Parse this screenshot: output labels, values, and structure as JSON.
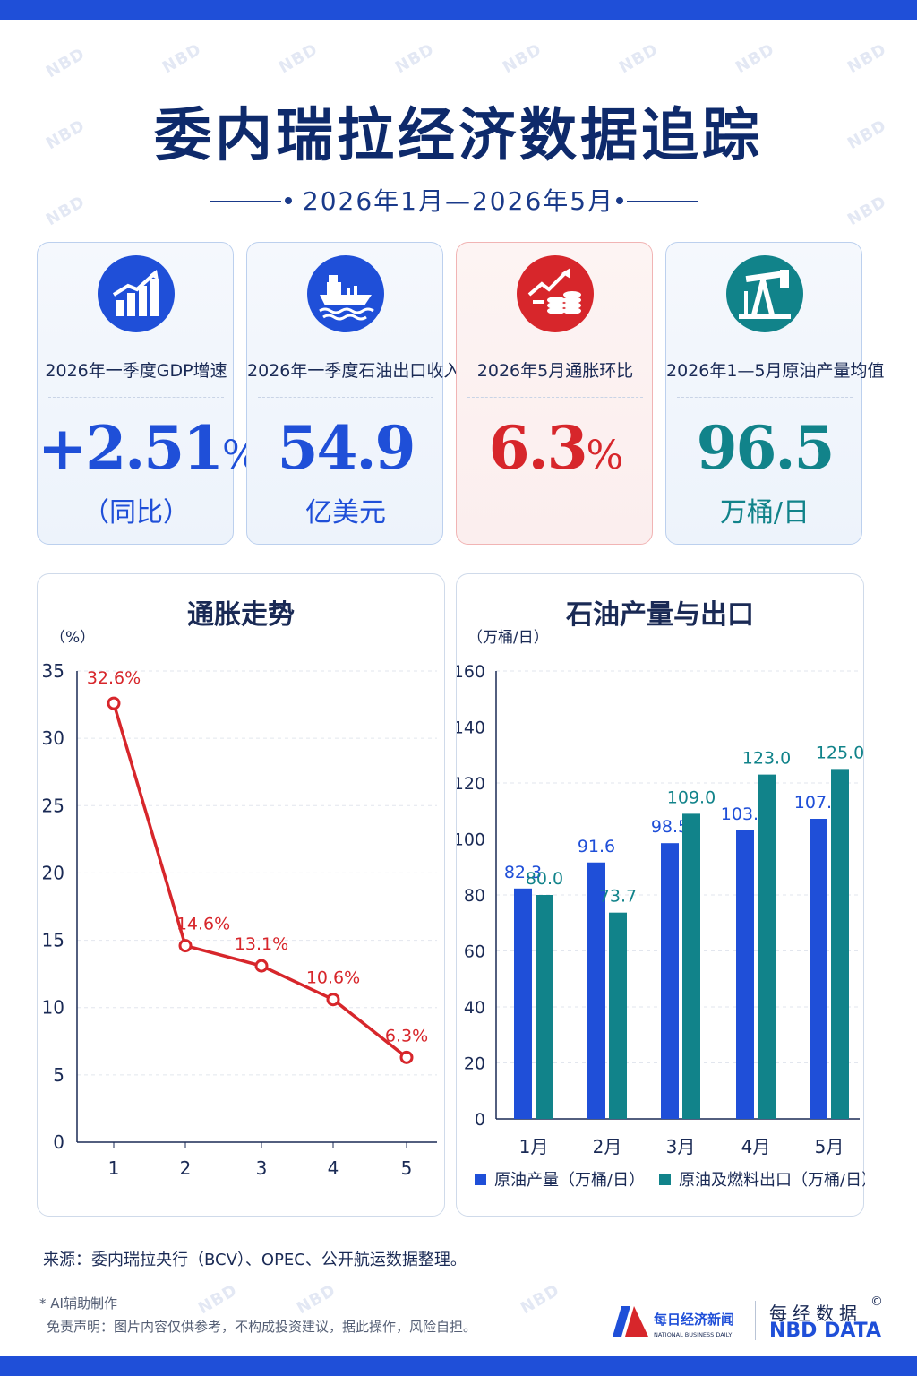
{
  "header": {
    "title": "委内瑞拉经济数据追踪",
    "subtitle": "2026年1月—2026年5月",
    "watermark": "NBD"
  },
  "colors": {
    "primary_blue": "#1f4fd8",
    "teal": "#11838a",
    "red": "#d7262b",
    "navy": "#0e2a6b"
  },
  "cards": [
    {
      "icon": "bar-growth-icon",
      "label": "2026年一季度GDP增速",
      "value": "+2.51",
      "unit": "%",
      "note": "（同比）",
      "color": "#1f4fd8"
    },
    {
      "icon": "oil-tanker-icon",
      "label": "2026年一季度石油出口收入",
      "value": "54.9",
      "unit": "",
      "note": "亿美元",
      "color": "#1f4fd8"
    },
    {
      "icon": "coins-arrow-icon",
      "label": "2026年5月通胀环比",
      "value": "6.3",
      "unit": "%",
      "note": "",
      "color": "#d7262b"
    },
    {
      "icon": "oil-pump-icon",
      "label": "2026年1—5月原油产量均值",
      "value": "96.5",
      "unit": "",
      "note": "万桶/日",
      "color": "#11838a"
    }
  ],
  "chart_data": [
    {
      "type": "line",
      "title": "通胀走势",
      "ylabel": "（%）",
      "xlabel": "",
      "x": [
        "1",
        "2",
        "3",
        "4",
        "5"
      ],
      "values": [
        32.6,
        14.6,
        13.1,
        10.6,
        6.3
      ],
      "point_labels": [
        "32.6%",
        "14.6%",
        "13.1%",
        "10.6%",
        "6.3%"
      ],
      "ylim": [
        0,
        35
      ],
      "yticks": [
        0,
        5,
        10,
        15,
        20,
        25,
        30,
        35
      ],
      "grid": true,
      "color": "#d7262b"
    },
    {
      "type": "bar",
      "title": "石油产量与出口",
      "ylabel": "（万桶/日）",
      "categories": [
        "1月",
        "2月",
        "3月",
        "4月",
        "5月"
      ],
      "series": [
        {
          "name": "原油产量（万桶/日）",
          "values": [
            82.3,
            91.6,
            98.5,
            103.1,
            107.2
          ],
          "labels": [
            "82.3",
            "91.6",
            "98.5",
            "103.1",
            "107.2"
          ],
          "color": "#1f4fd8"
        },
        {
          "name": "原油及燃料出口（万桶/日）",
          "values": [
            80.0,
            73.7,
            109.0,
            123.0,
            125.0
          ],
          "labels": [
            "80.0",
            "73.7",
            "109.0",
            "123.0",
            "125.0"
          ],
          "color": "#11838a"
        }
      ],
      "ylim": [
        0,
        160
      ],
      "yticks": [
        0,
        20,
        40,
        60,
        80,
        100,
        120,
        140,
        160
      ],
      "grid": true,
      "legend": "bottom"
    }
  ],
  "footer": {
    "source": "来源：委内瑞拉央行（BCV）、OPEC、公开航运数据整理。",
    "ai_note": "* AI辅助制作",
    "disclaimer": "免责声明：图片内容仅供参考，不构成投资建议，据此操作，风险自担。",
    "logo_cn": "每日经济新闻",
    "logo_en": "NATIONAL BUSINESS DAILY",
    "brand_cn": "每经数据",
    "brand_en": "NBD DATA",
    "copyright": "©"
  }
}
